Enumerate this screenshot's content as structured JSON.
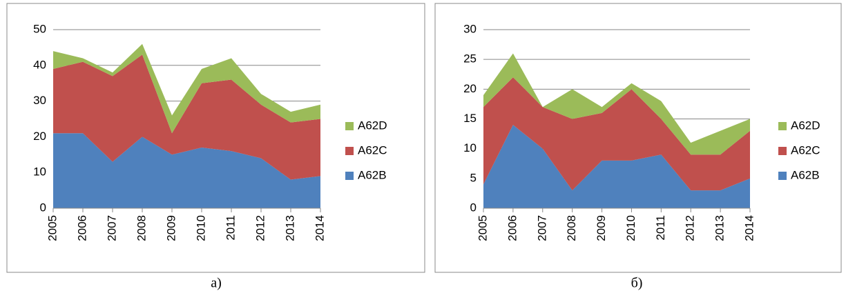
{
  "chart_data": [
    {
      "type": "stacked_area",
      "caption": "а)",
      "categories": [
        "2005",
        "2006",
        "2007",
        "2008",
        "2009",
        "2010",
        "2011",
        "2012",
        "2013",
        "2014"
      ],
      "ylim": [
        0,
        50
      ],
      "yticks": [
        0,
        10,
        20,
        30,
        40,
        50
      ],
      "grid": true,
      "legend": "right",
      "series": [
        {
          "name": "A62B",
          "color": "#4f81bd",
          "values": [
            21,
            21,
            13,
            20,
            15,
            17,
            16,
            14,
            8,
            9
          ]
        },
        {
          "name": "A62C",
          "color": "#c0504d",
          "values": [
            18,
            20,
            24,
            23,
            6,
            18,
            20,
            15,
            16,
            16
          ]
        },
        {
          "name": "A62D",
          "color": "#9bbb59",
          "values": [
            5,
            1,
            1,
            3,
            5,
            4,
            6,
            3,
            3,
            4
          ]
        }
      ]
    },
    {
      "type": "stacked_area",
      "caption": "б)",
      "categories": [
        "2005",
        "2006",
        "2007",
        "2008",
        "2009",
        "2010",
        "2011",
        "2012",
        "2013",
        "2014"
      ],
      "ylim": [
        0,
        30
      ],
      "yticks": [
        0,
        5,
        10,
        15,
        20,
        25,
        30
      ],
      "grid": true,
      "legend": "right",
      "series": [
        {
          "name": "A62B",
          "color": "#4f81bd",
          "values": [
            4,
            14,
            10,
            3,
            8,
            8,
            9,
            3,
            3,
            5
          ]
        },
        {
          "name": "A62C",
          "color": "#c0504d",
          "values": [
            13,
            8,
            7,
            12,
            8,
            12,
            6,
            6,
            6,
            8
          ]
        },
        {
          "name": "A62D",
          "color": "#9bbb59",
          "values": [
            2,
            4,
            0,
            5,
            1,
            1,
            3,
            2,
            4,
            2
          ]
        }
      ]
    }
  ]
}
